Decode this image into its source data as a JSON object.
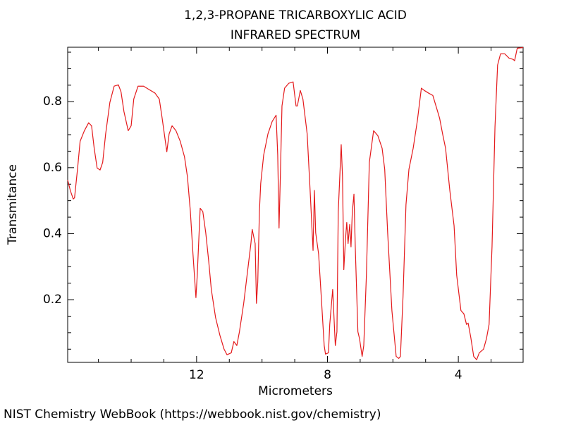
{
  "chart_data": {
    "type": "line",
    "title": "1,2,3-PROPANE TRICARBOXYLIC ACID",
    "subtitle": "INFRARED SPECTRUM",
    "x_label": "Micrometers",
    "y_label": "Transmitance",
    "source": "NIST Chemistry WebBook (https://webbook.nist.gov/chemistry)",
    "color": "#e41a1c",
    "xlim": [
      15.94,
      2.02
    ],
    "ylim": [
      0.01,
      0.965
    ],
    "xticks": [
      12,
      8,
      4
    ],
    "yticks": [
      0.2,
      0.4,
      0.6,
      0.8
    ],
    "xminorticks": [
      15,
      14,
      13,
      11,
      10,
      9,
      7,
      6,
      5,
      3
    ],
    "yminorticks": [
      0.05,
      0.1,
      0.15,
      0.25,
      0.3,
      0.35,
      0.45,
      0.5,
      0.55,
      0.65,
      0.7,
      0.75,
      0.85,
      0.9,
      0.95
    ],
    "x": [
      15.94,
      15.86,
      15.77,
      15.73,
      15.64,
      15.56,
      15.43,
      15.3,
      15.21,
      15.13,
      15.04,
      14.95,
      14.87,
      14.78,
      14.65,
      14.52,
      14.39,
      14.31,
      14.22,
      14.09,
      14.0,
      13.92,
      13.79,
      13.62,
      13.44,
      13.27,
      13.14,
      13.06,
      12.97,
      12.91,
      12.84,
      12.75,
      12.63,
      12.5,
      12.37,
      12.28,
      12.19,
      12.11,
      12.02,
      11.98,
      11.89,
      11.81,
      11.72,
      11.63,
      11.55,
      11.42,
      11.29,
      11.16,
      11.07,
      10.94,
      10.86,
      10.77,
      10.69,
      10.56,
      10.43,
      10.34,
      10.3,
      10.21,
      10.17,
      10.13,
      10.08,
      10.04,
      9.95,
      9.82,
      9.69,
      9.57,
      9.52,
      9.48,
      9.44,
      9.39,
      9.31,
      9.18,
      9.05,
      8.96,
      8.92,
      8.83,
      8.75,
      8.62,
      8.53,
      8.44,
      8.4,
      8.36,
      8.27,
      8.19,
      8.1,
      8.06,
      7.97,
      7.93,
      7.84,
      7.8,
      7.76,
      7.71,
      7.67,
      7.58,
      7.54,
      7.5,
      7.45,
      7.41,
      7.37,
      7.32,
      7.28,
      7.24,
      7.19,
      7.15,
      7.07,
      7.02,
      6.94,
      6.89,
      6.81,
      6.72,
      6.59,
      6.46,
      6.33,
      6.25,
      6.16,
      6.03,
      5.9,
      5.82,
      5.77,
      5.69,
      5.6,
      5.51,
      5.38,
      5.25,
      5.13,
      5.04,
      4.91,
      4.78,
      4.65,
      4.57,
      4.48,
      4.39,
      4.26,
      4.13,
      4.05,
      3.92,
      3.83,
      3.75,
      3.7,
      3.62,
      3.53,
      3.44,
      3.36,
      3.23,
      3.14,
      3.06,
      2.97,
      2.88,
      2.8,
      2.71,
      2.58,
      2.45,
      2.32,
      2.28,
      2.2,
      2.02
    ],
    "values": [
      0.563,
      0.531,
      0.505,
      0.509,
      0.595,
      0.68,
      0.712,
      0.736,
      0.727,
      0.659,
      0.599,
      0.593,
      0.616,
      0.702,
      0.798,
      0.847,
      0.851,
      0.83,
      0.77,
      0.712,
      0.727,
      0.808,
      0.847,
      0.847,
      0.836,
      0.826,
      0.808,
      0.755,
      0.691,
      0.648,
      0.702,
      0.727,
      0.712,
      0.68,
      0.633,
      0.573,
      0.467,
      0.338,
      0.206,
      0.274,
      0.477,
      0.467,
      0.403,
      0.317,
      0.231,
      0.146,
      0.093,
      0.05,
      0.033,
      0.039,
      0.073,
      0.061,
      0.103,
      0.189,
      0.296,
      0.37,
      0.413,
      0.37,
      0.189,
      0.253,
      0.467,
      0.552,
      0.638,
      0.702,
      0.74,
      0.759,
      0.638,
      0.417,
      0.573,
      0.787,
      0.841,
      0.856,
      0.86,
      0.787,
      0.787,
      0.834,
      0.808,
      0.702,
      0.531,
      0.349,
      0.531,
      0.403,
      0.338,
      0.21,
      0.061,
      0.035,
      0.039,
      0.125,
      0.231,
      0.146,
      0.061,
      0.103,
      0.467,
      0.67,
      0.573,
      0.291,
      0.381,
      0.434,
      0.37,
      0.428,
      0.36,
      0.467,
      0.52,
      0.36,
      0.103,
      0.082,
      0.028,
      0.061,
      0.274,
      0.616,
      0.712,
      0.697,
      0.659,
      0.595,
      0.403,
      0.167,
      0.028,
      0.022,
      0.028,
      0.21,
      0.488,
      0.595,
      0.659,
      0.744,
      0.841,
      0.834,
      0.826,
      0.819,
      0.776,
      0.749,
      0.702,
      0.659,
      0.531,
      0.424,
      0.274,
      0.167,
      0.157,
      0.125,
      0.129,
      0.086,
      0.028,
      0.018,
      0.039,
      0.05,
      0.082,
      0.125,
      0.36,
      0.723,
      0.911,
      0.945,
      0.945,
      0.932,
      0.928,
      0.924,
      0.962,
      0.964
    ]
  }
}
